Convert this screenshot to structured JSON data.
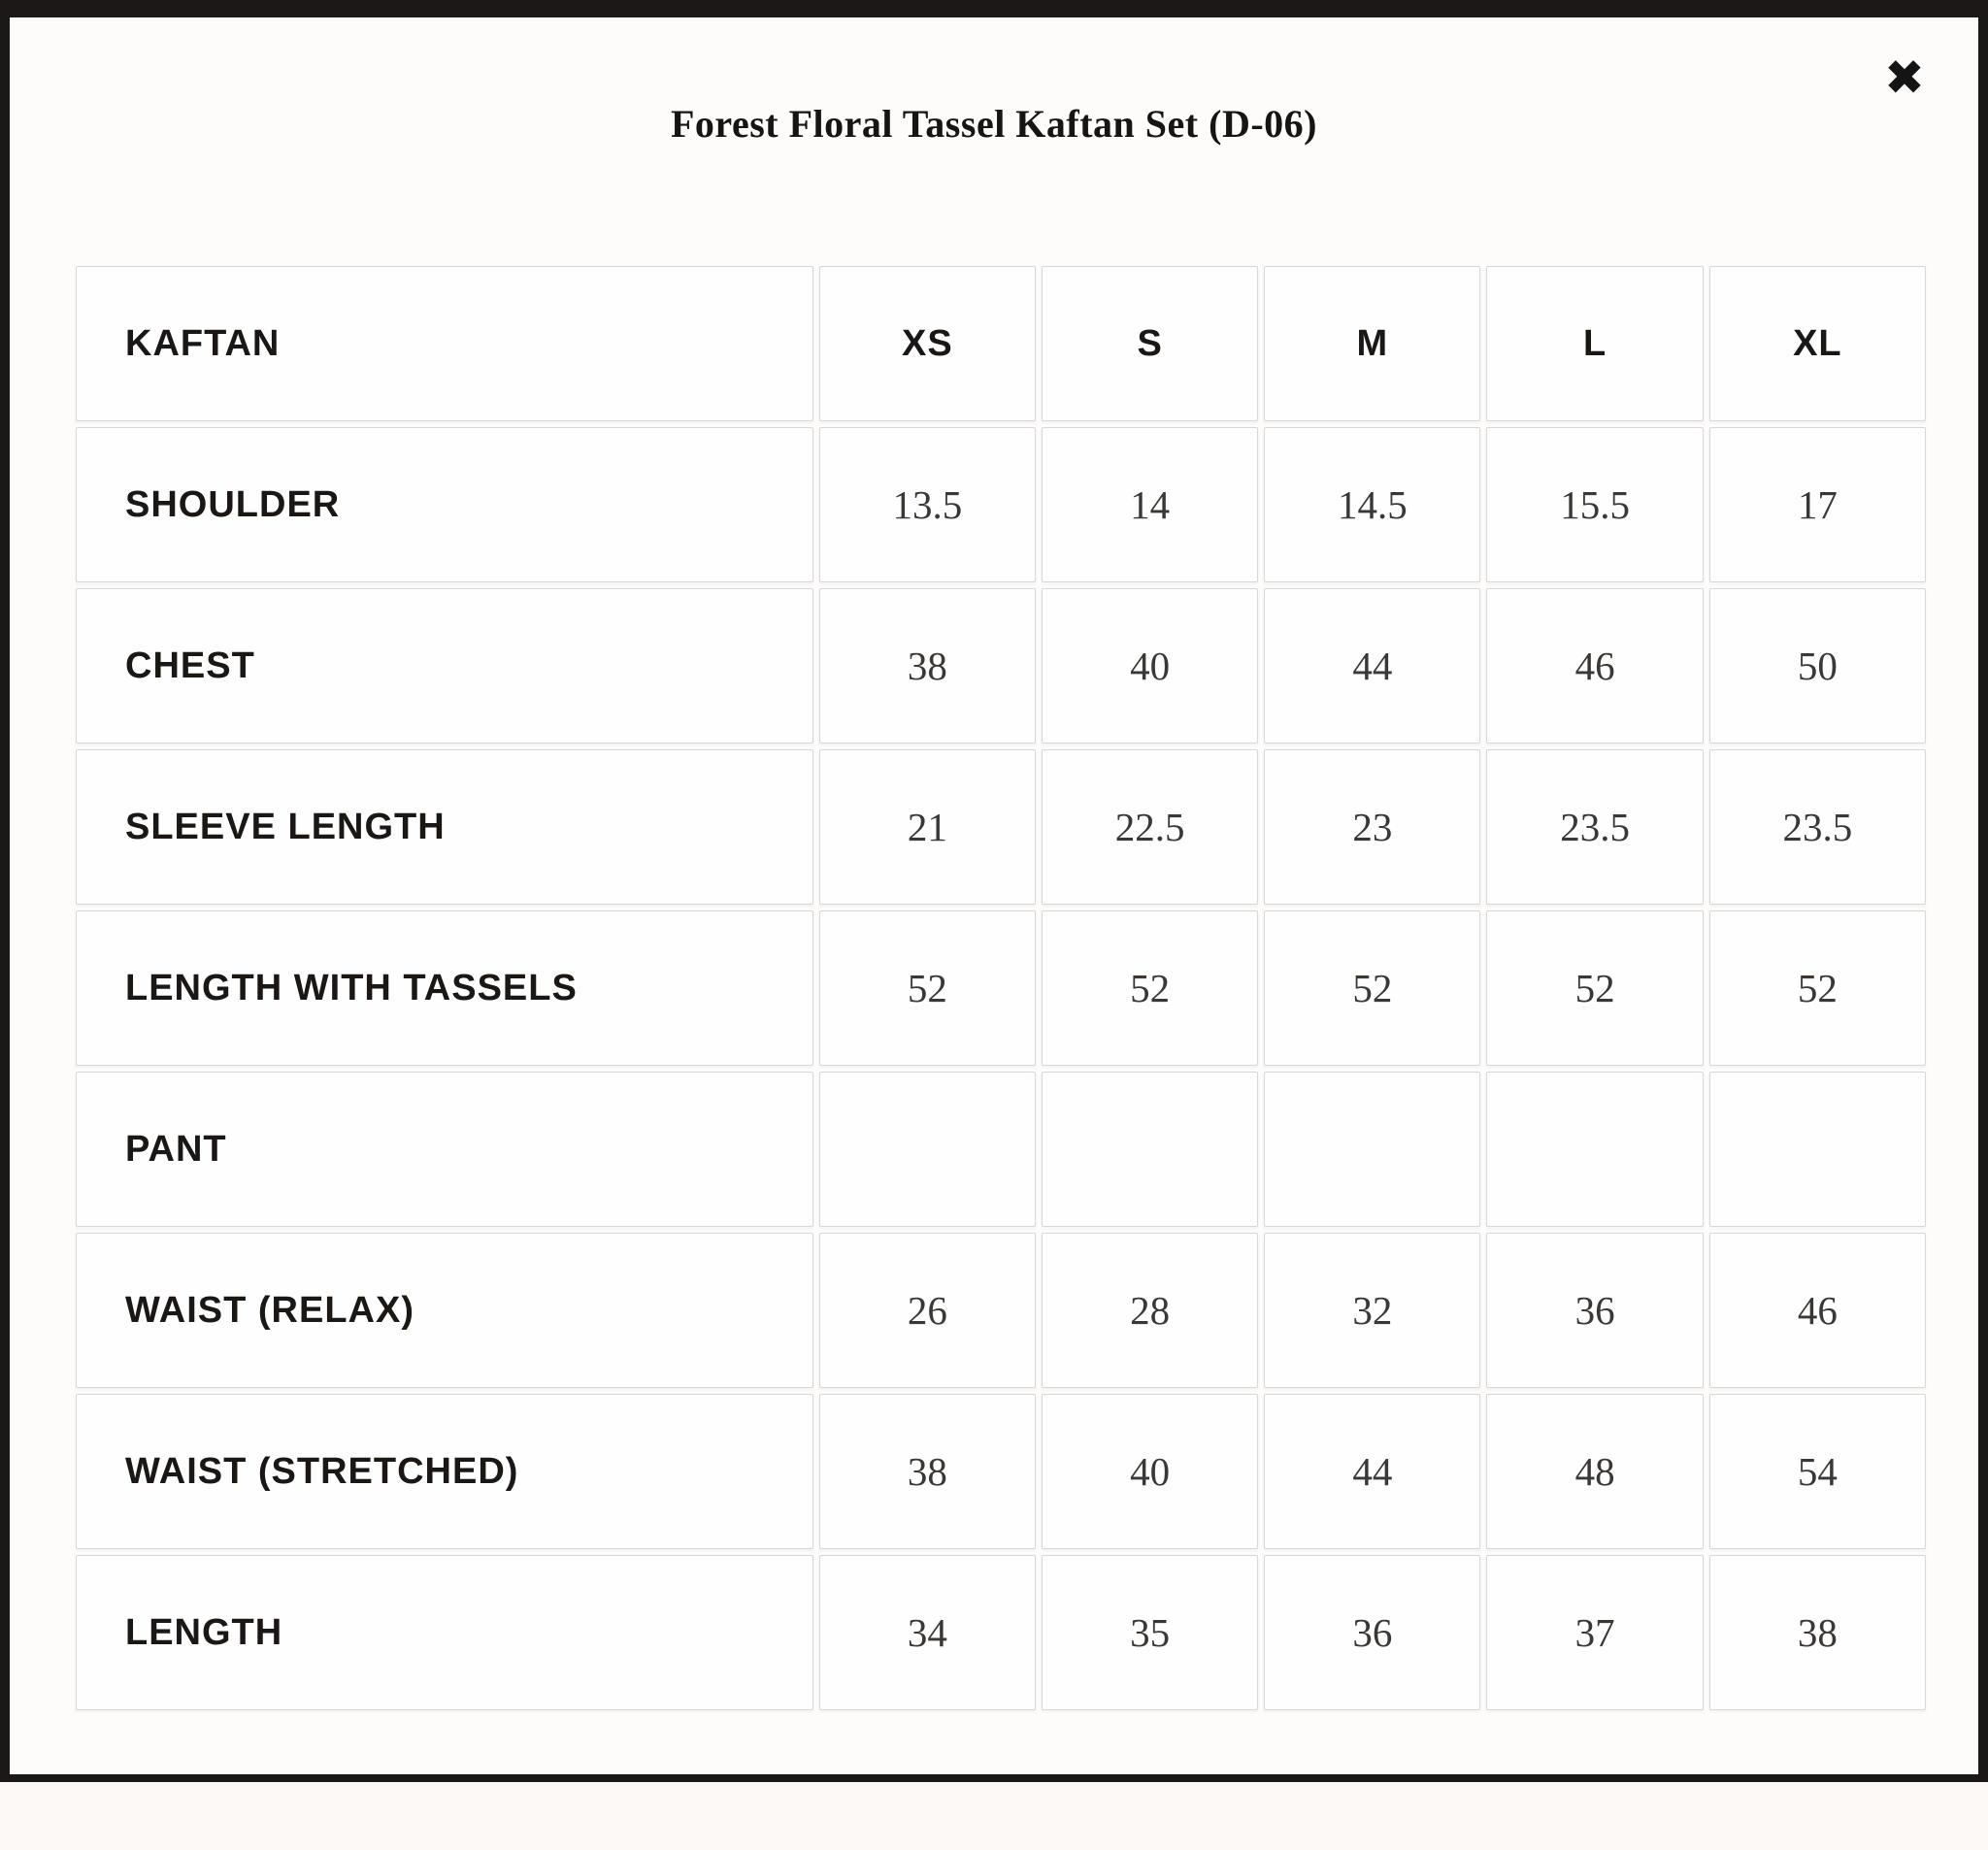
{
  "modal": {
    "title": "Forest Floral Tassel Kaftan Set (D-06)",
    "close_icon": "✖"
  },
  "size_chart": {
    "columns": [
      "KAFTAN",
      "XS",
      "S",
      "M",
      "L",
      "XL"
    ],
    "rows": [
      {
        "label": "SHOULDER",
        "values": [
          "13.5",
          "14",
          "14.5",
          "15.5",
          "17"
        ]
      },
      {
        "label": "CHEST",
        "values": [
          "38",
          "40",
          "44",
          "46",
          "50"
        ]
      },
      {
        "label": "SLEEVE LENGTH",
        "values": [
          "21",
          "22.5",
          "23",
          "23.5",
          "23.5"
        ]
      },
      {
        "label": "LENGTH WITH TASSELS",
        "values": [
          "52",
          "52",
          "52",
          "52",
          "52"
        ]
      },
      {
        "label": "PANT",
        "values": [
          "",
          "",
          "",
          "",
          ""
        ]
      },
      {
        "label": "WAIST (RELAX)",
        "values": [
          "26",
          "28",
          "32",
          "36",
          "46"
        ]
      },
      {
        "label": "WAIST (STRETCHED)",
        "values": [
          "38",
          "40",
          "44",
          "48",
          "54"
        ]
      },
      {
        "label": "LENGTH",
        "values": [
          "34",
          "35",
          "36",
          "37",
          "38"
        ]
      }
    ]
  },
  "colors": {
    "modal_background": "#fdfcfb",
    "frame_background": "#1b1817",
    "cell_border": "#d9d6d3",
    "label_text": "#1a1715",
    "value_text": "#3a3734"
  }
}
